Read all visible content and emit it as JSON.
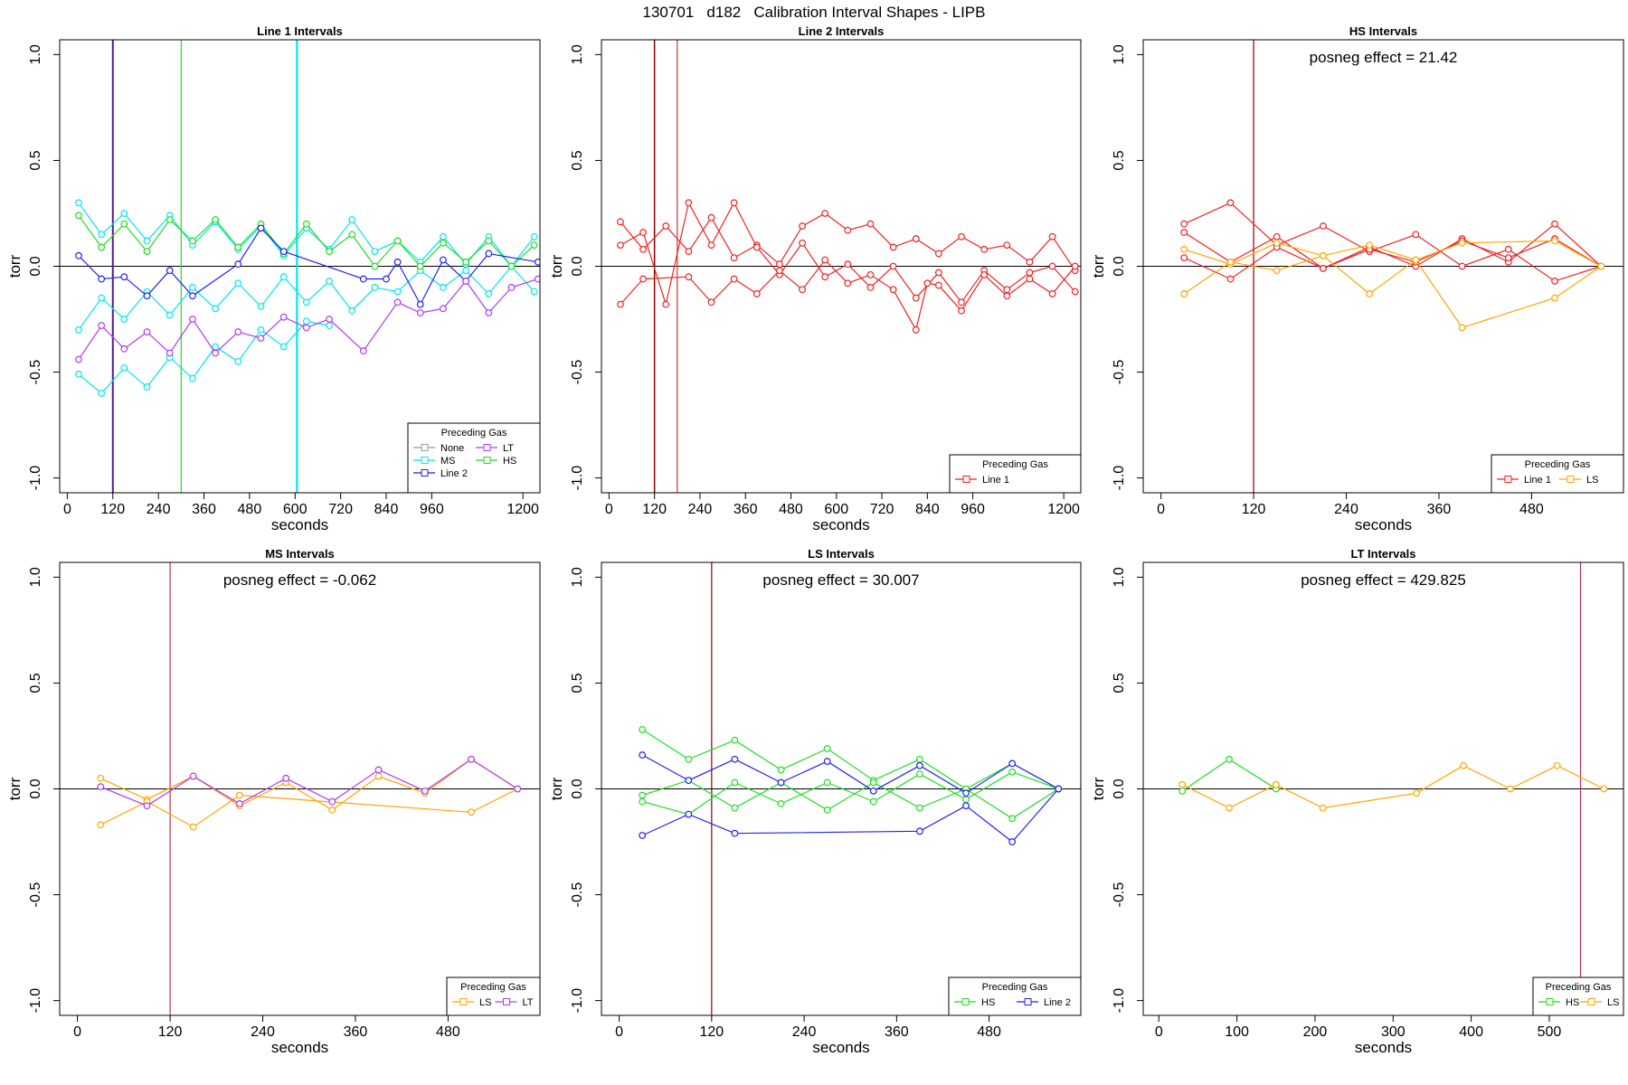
{
  "figure": {
    "title": "130701   d182   Calibration Interval Shapes - LIPB"
  },
  "colors": {
    "None": "#999999",
    "MS": "#00e5ee",
    "LT": "#b23aee",
    "Line 2": "#2222ee",
    "HS": "#22dd22",
    "Line 1": "#ee2222",
    "LS": "#ffa500",
    "ref_line": "#8b0000",
    "zero_line": "#000000"
  },
  "chart_data": [
    {
      "id": "line1",
      "type": "line",
      "title": "Line 1 Intervals",
      "xlabel": "seconds",
      "ylabel": "torr",
      "xlim": [
        -20,
        1245
      ],
      "ylim": [
        -1.07,
        1.07
      ],
      "xticks": [
        0,
        120,
        240,
        360,
        480,
        600,
        720,
        840,
        960,
        1200
      ],
      "yticks": [
        -1.0,
        -0.5,
        0.0,
        0.5,
        1.0
      ],
      "ytick_labels": [
        "-1.0",
        "-0.5",
        "0.0",
        "0.5",
        "1.0"
      ],
      "vlines": [
        {
          "x": 120,
          "color": "#551a8b",
          "width": 2
        },
        {
          "x": 300,
          "color": "#22dd22",
          "width": 1.2
        },
        {
          "x": 605,
          "color": "#00e5ee",
          "width": 2.2
        }
      ],
      "legend": {
        "title": "Preceding Gas",
        "position": "bottom-right",
        "columns": 2,
        "entries": [
          "None",
          "LT",
          "MS",
          "HS",
          "Line 2"
        ]
      },
      "series": [
        {
          "name": "MS",
          "x": [
            30,
            90,
            150,
            210,
            270,
            330,
            390,
            450,
            510,
            570,
            630,
            690,
            750,
            810,
            870,
            930,
            990,
            1050,
            1110,
            1170,
            1230
          ],
          "y": [
            0.3,
            0.15,
            0.25,
            0.12,
            0.24,
            0.1,
            0.21,
            0.08,
            0.19,
            0.05,
            0.18,
            0.08,
            0.22,
            0.07,
            0.12,
            0.02,
            0.14,
            0.01,
            0.14,
            0.0,
            0.14
          ]
        },
        {
          "name": "MS",
          "x": [
            30,
            90,
            150,
            210,
            270,
            330,
            390,
            450,
            510,
            570,
            630,
            690,
            750,
            810,
            870,
            930,
            990,
            1050,
            1110,
            1170,
            1230
          ],
          "y": [
            -0.3,
            -0.15,
            -0.25,
            -0.12,
            -0.23,
            -0.1,
            -0.2,
            -0.08,
            -0.19,
            -0.05,
            -0.17,
            -0.07,
            -0.21,
            -0.1,
            -0.12,
            -0.02,
            -0.1,
            -0.02,
            -0.13,
            0.0,
            -0.12
          ]
        },
        {
          "name": "MS",
          "x": [
            30,
            90,
            150,
            210,
            270,
            330,
            390,
            450,
            510,
            570,
            630,
            690
          ],
          "y": [
            -0.51,
            -0.6,
            -0.48,
            -0.57,
            -0.43,
            -0.53,
            -0.38,
            -0.45,
            -0.3,
            -0.38,
            -0.26,
            -0.28
          ]
        },
        {
          "name": "HS",
          "x": [
            30,
            90,
            150,
            210,
            270,
            330,
            390,
            450,
            510,
            570,
            630,
            690,
            750,
            810,
            870,
            930,
            990,
            1050,
            1110,
            1170,
            1230
          ],
          "y": [
            0.24,
            0.09,
            0.2,
            0.07,
            0.22,
            0.12,
            0.22,
            0.09,
            0.2,
            0.06,
            0.2,
            0.07,
            0.15,
            0.0,
            0.12,
            0.0,
            0.11,
            0.02,
            0.12,
            0.0,
            0.1
          ]
        },
        {
          "name": "Line 2",
          "x": [
            30,
            90,
            150,
            210,
            270,
            330,
            450,
            510,
            570,
            780,
            840,
            870,
            930,
            990,
            1050,
            1110,
            1240
          ],
          "y": [
            0.05,
            -0.06,
            -0.05,
            -0.14,
            -0.02,
            -0.14,
            0.01,
            0.18,
            0.07,
            -0.06,
            -0.06,
            0.02,
            -0.18,
            0.03,
            -0.07,
            0.06,
            0.02
          ]
        },
        {
          "name": "LT",
          "x": [
            30,
            90,
            150,
            210,
            270,
            330,
            390,
            450,
            510,
            570,
            630,
            690,
            780,
            870,
            930,
            990,
            1050,
            1110,
            1170,
            1240
          ],
          "y": [
            -0.44,
            -0.28,
            -0.39,
            -0.31,
            -0.41,
            -0.25,
            -0.41,
            -0.31,
            -0.34,
            -0.24,
            -0.29,
            -0.25,
            -0.4,
            -0.17,
            -0.22,
            -0.2,
            -0.07,
            -0.22,
            -0.1,
            -0.06
          ]
        }
      ]
    },
    {
      "id": "line2",
      "type": "line",
      "title": "Line 2 Intervals",
      "xlabel": "seconds",
      "ylabel": "torr",
      "xlim": [
        -20,
        1245
      ],
      "ylim": [
        -1.07,
        1.07
      ],
      "xticks": [
        0,
        120,
        240,
        360,
        480,
        600,
        720,
        840,
        960,
        1200
      ],
      "yticks": [
        -1.0,
        -0.5,
        0.0,
        0.5,
        1.0
      ],
      "ytick_labels": [
        "-1.0",
        "-0.5",
        "0.0",
        "0.5",
        "1.0"
      ],
      "vlines": [
        {
          "x": 120,
          "color": "#8b0000",
          "width": 1.5
        },
        {
          "x": 180,
          "color": "#cd3333",
          "width": 1.2
        }
      ],
      "legend": {
        "title": "Preceding Gas",
        "position": "bottom-right",
        "columns": 1,
        "entries": [
          "Line 1"
        ]
      },
      "series": [
        {
          "name": "Line 1",
          "x": [
            30,
            90,
            150,
            210,
            270,
            330,
            390,
            450,
            510,
            570,
            630,
            690,
            750,
            810,
            870,
            930,
            990,
            1050,
            1110,
            1170,
            1230
          ],
          "y": [
            0.21,
            0.08,
            0.19,
            0.07,
            0.23,
            0.04,
            0.1,
            0.01,
            0.19,
            0.25,
            0.17,
            0.2,
            0.09,
            0.13,
            0.06,
            0.14,
            0.08,
            0.1,
            0.02,
            0.14,
            -0.02
          ]
        },
        {
          "name": "Line 1",
          "x": [
            30,
            90,
            150,
            210,
            270,
            330,
            390,
            450,
            510,
            570,
            630,
            690,
            750,
            810,
            870,
            930,
            990,
            1050,
            1110,
            1170,
            1230
          ],
          "y": [
            0.1,
            0.16,
            -0.18,
            0.3,
            0.1,
            0.3,
            0.09,
            -0.04,
            0.11,
            -0.05,
            0.01,
            -0.1,
            0.0,
            -0.15,
            -0.03,
            -0.17,
            -0.02,
            -0.11,
            -0.03,
            0.0,
            -0.12
          ]
        },
        {
          "name": "Line 1",
          "x": [
            30,
            90,
            210,
            270,
            330,
            390,
            450,
            510,
            570,
            630,
            690,
            750,
            810,
            840,
            870,
            930,
            990,
            1050,
            1110,
            1170,
            1230
          ],
          "y": [
            -0.18,
            -0.06,
            -0.05,
            -0.17,
            -0.06,
            -0.13,
            -0.02,
            -0.11,
            0.03,
            -0.08,
            -0.04,
            -0.11,
            -0.3,
            -0.08,
            -0.09,
            -0.21,
            -0.04,
            -0.14,
            -0.06,
            -0.13,
            0.0
          ]
        }
      ]
    },
    {
      "id": "hs",
      "type": "line",
      "title": "HS Intervals",
      "xlabel": "seconds",
      "ylabel": "torr",
      "annotation": "posneg effect = 21.42",
      "xlim": [
        -23,
        599
      ],
      "ylim": [
        -1.07,
        1.07
      ],
      "xticks": [
        0,
        120,
        240,
        360,
        480
      ],
      "yticks": [
        -1.0,
        -0.5,
        0.0,
        0.5,
        1.0
      ],
      "ytick_labels": [
        "-1.0",
        "-0.5",
        "0.0",
        "0.5",
        "1.0"
      ],
      "vlines": [
        {
          "x": 120,
          "color": "#8b0000",
          "width": 1.2
        }
      ],
      "legend": {
        "title": "Preceding Gas",
        "position": "bottom-right",
        "columns": 2,
        "entries": [
          "Line 1",
          "LS"
        ]
      },
      "series": [
        {
          "name": "Line 1",
          "x": [
            30,
            90,
            150,
            210,
            270,
            330,
            390,
            450,
            510,
            570
          ],
          "y": [
            0.2,
            0.3,
            0.1,
            0.19,
            0.07,
            0.15,
            0.0,
            0.08,
            -0.07,
            0.0
          ]
        },
        {
          "name": "Line 1",
          "x": [
            30,
            90,
            150,
            210,
            270,
            330,
            390,
            450,
            510,
            570
          ],
          "y": [
            0.16,
            0.02,
            0.14,
            -0.01,
            0.09,
            0.0,
            0.13,
            0.02,
            0.2,
            0.0
          ]
        },
        {
          "name": "Line 1",
          "x": [
            30,
            90,
            150,
            210,
            270,
            330,
            390,
            450,
            510,
            570
          ],
          "y": [
            0.04,
            -0.06,
            0.09,
            -0.01,
            0.08,
            0.02,
            0.12,
            0.04,
            0.13,
            0.0
          ]
        },
        {
          "name": "LS",
          "x": [
            30,
            90,
            150,
            210,
            270,
            330,
            390,
            510,
            570
          ],
          "y": [
            0.08,
            0.01,
            0.11,
            0.05,
            0.1,
            0.03,
            0.11,
            0.12,
            0.0
          ]
        },
        {
          "name": "LS",
          "x": [
            30,
            90,
            150,
            210,
            270,
            330,
            390,
            510,
            570
          ],
          "y": [
            -0.13,
            0.02,
            -0.02,
            0.05,
            -0.13,
            0.03,
            -0.29,
            -0.15,
            0.0
          ]
        }
      ]
    },
    {
      "id": "ms",
      "type": "line",
      "title": "MS Intervals",
      "xlabel": "seconds",
      "ylabel": "torr",
      "annotation": "posneg effect = -0.062",
      "xlim": [
        -23,
        599
      ],
      "ylim": [
        -1.07,
        1.07
      ],
      "xticks": [
        0,
        120,
        240,
        360,
        480
      ],
      "yticks": [
        -1.0,
        -0.5,
        0.0,
        0.5,
        1.0
      ],
      "ytick_labels": [
        "-1.0",
        "-0.5",
        "0.0",
        "0.5",
        "1.0"
      ],
      "vlines": [
        {
          "x": 120,
          "color": "#b03060",
          "width": 1.2
        }
      ],
      "legend": {
        "title": "Preceding Gas",
        "position": "bottom-right",
        "columns": 2,
        "entries": [
          "LS",
          "LT"
        ]
      },
      "series": [
        {
          "name": "LS",
          "x": [
            30,
            90,
            150,
            210,
            270,
            330,
            390,
            450,
            510,
            570
          ],
          "y": [
            0.05,
            -0.05,
            0.06,
            -0.08,
            0.03,
            -0.1,
            0.06,
            -0.02,
            0.14,
            0.0
          ]
        },
        {
          "name": "LS",
          "x": [
            30,
            90,
            150,
            210,
            510,
            570
          ],
          "y": [
            -0.17,
            -0.06,
            -0.18,
            -0.03,
            -0.11,
            0.0
          ]
        },
        {
          "name": "LT",
          "x": [
            30,
            90,
            150,
            210,
            270,
            330,
            390,
            450,
            510,
            570
          ],
          "y": [
            0.01,
            -0.08,
            0.06,
            -0.07,
            0.05,
            -0.06,
            0.09,
            -0.01,
            0.14,
            0.0
          ]
        }
      ]
    },
    {
      "id": "ls",
      "type": "line",
      "title": "LS Intervals",
      "xlabel": "seconds",
      "ylabel": "torr",
      "annotation": "posneg effect = 30.007",
      "xlim": [
        -23,
        599
      ],
      "ylim": [
        -1.07,
        1.07
      ],
      "xticks": [
        0,
        120,
        240,
        360,
        480
      ],
      "yticks": [
        -1.0,
        -0.5,
        0.0,
        0.5,
        1.0
      ],
      "ytick_labels": [
        "-1.0",
        "-0.5",
        "0.0",
        "0.5",
        "1.0"
      ],
      "vlines": [
        {
          "x": 120,
          "color": "#8b0000",
          "width": 1.2
        }
      ],
      "legend": {
        "title": "Preceding Gas",
        "position": "bottom-right",
        "columns": 2,
        "entries": [
          "HS",
          "Line 2"
        ]
      },
      "series": [
        {
          "name": "HS",
          "x": [
            30,
            90,
            150,
            210,
            270,
            330,
            390,
            450,
            510,
            570
          ],
          "y": [
            0.28,
            0.14,
            0.23,
            0.09,
            0.19,
            0.04,
            0.14,
            0.0,
            0.12,
            0.0
          ]
        },
        {
          "name": "HS",
          "x": [
            30,
            90,
            150,
            210,
            270,
            330,
            390,
            450,
            510,
            570
          ],
          "y": [
            -0.03,
            0.04,
            -0.09,
            0.03,
            -0.1,
            0.03,
            -0.09,
            0.0,
            -0.14,
            0.0
          ]
        },
        {
          "name": "HS",
          "x": [
            30,
            90,
            150,
            210,
            270,
            330,
            390,
            450,
            510,
            570
          ],
          "y": [
            -0.06,
            -0.12,
            0.03,
            -0.07,
            0.03,
            -0.06,
            0.07,
            -0.05,
            0.08,
            0.0
          ]
        },
        {
          "name": "Line 2",
          "x": [
            30,
            90,
            150,
            210,
            270,
            330,
            390,
            450,
            510,
            570
          ],
          "y": [
            0.16,
            0.04,
            0.14,
            0.03,
            0.13,
            -0.01,
            0.11,
            -0.02,
            0.12,
            0.0
          ]
        },
        {
          "name": "Line 2",
          "x": [
            30,
            90,
            150,
            390,
            450,
            510,
            570
          ],
          "y": [
            -0.22,
            -0.12,
            -0.21,
            -0.2,
            -0.08,
            -0.25,
            0.0
          ]
        }
      ]
    },
    {
      "id": "lt",
      "type": "line",
      "title": "LT Intervals",
      "xlabel": "seconds",
      "ylabel": "torr",
      "annotation": "posneg effect = 429.825",
      "xlim": [
        -20,
        595
      ],
      "ylim": [
        -1.07,
        1.07
      ],
      "xticks": [
        0,
        100,
        200,
        300,
        400,
        500
      ],
      "yticks": [
        -1.0,
        -0.5,
        0.0,
        0.5,
        1.0
      ],
      "ytick_labels": [
        "-1.0",
        "-0.5",
        "0.0",
        "0.5",
        "1.0"
      ],
      "vlines": [
        {
          "x": 540,
          "color": "#b03060",
          "width": 1.2
        }
      ],
      "legend": {
        "title": "Preceding Gas",
        "position": "bottom-right",
        "columns": 2,
        "entries": [
          "HS",
          "LS"
        ]
      },
      "series": [
        {
          "name": "HS",
          "x": [
            30,
            90,
            150
          ],
          "y": [
            -0.01,
            0.14,
            0.0
          ]
        },
        {
          "name": "LS",
          "x": [
            30,
            90,
            150,
            210,
            330,
            390,
            450,
            510,
            570
          ],
          "y": [
            0.02,
            -0.09,
            0.02,
            -0.09,
            -0.02,
            0.11,
            0.0,
            0.11,
            0.0
          ]
        }
      ]
    }
  ]
}
